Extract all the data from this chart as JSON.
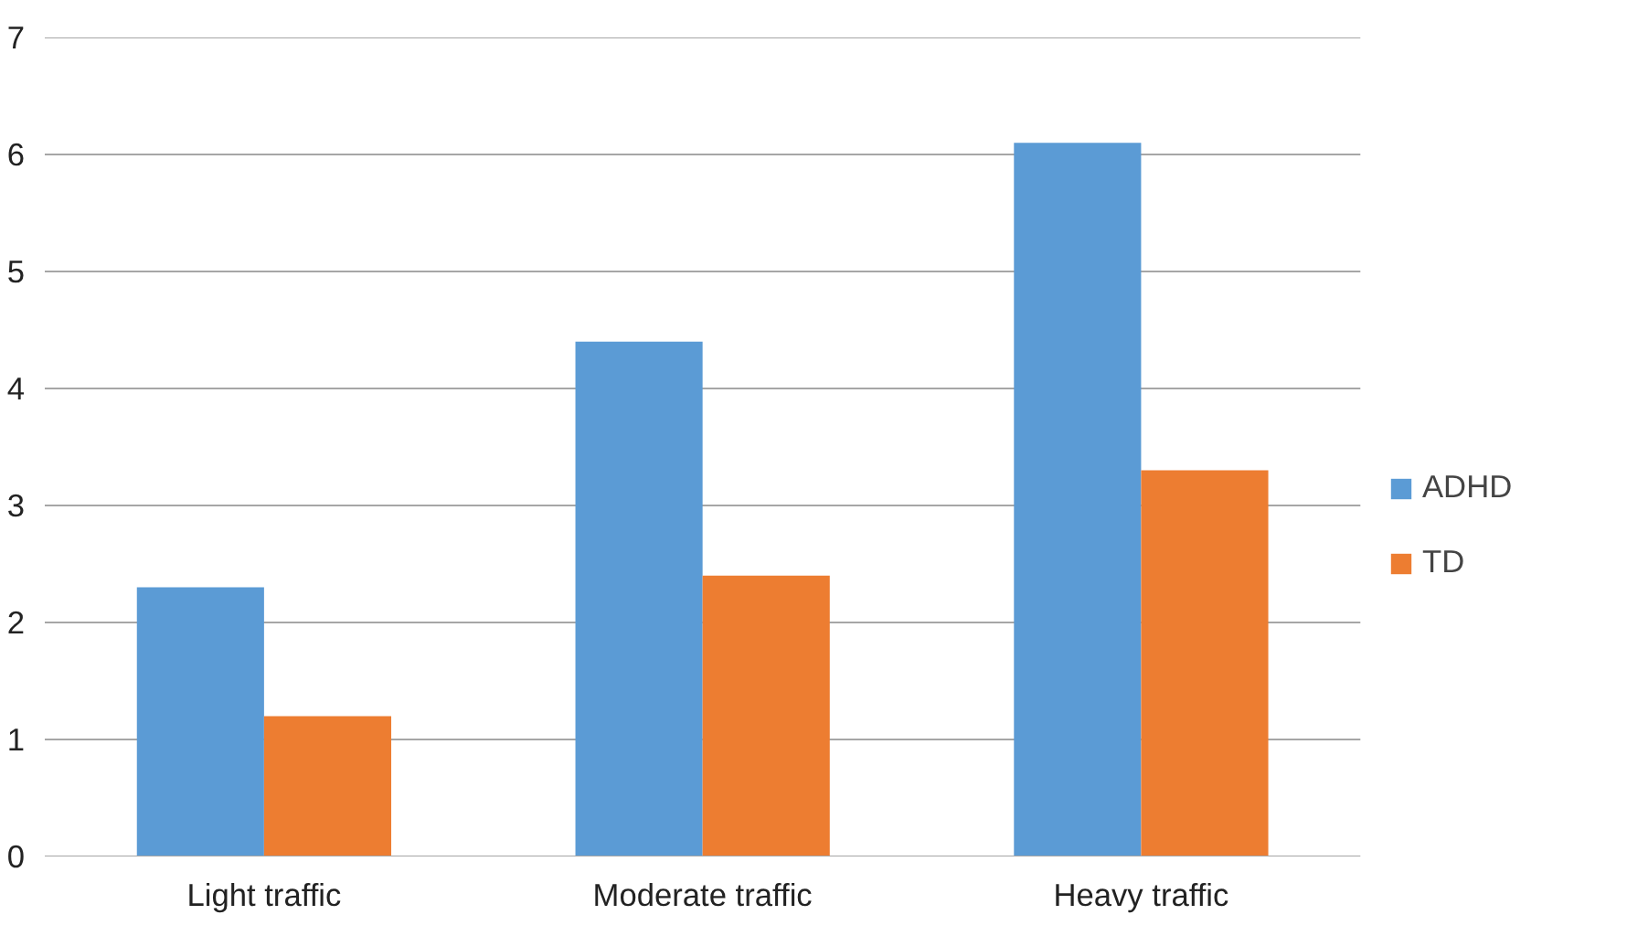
{
  "chart_data": {
    "type": "bar",
    "categories": [
      "Light traffic",
      "Moderate traffic",
      "Heavy traffic"
    ],
    "series": [
      {
        "name": "ADHD",
        "color": "#5b9bd5",
        "values": [
          2.3,
          4.4,
          6.1
        ]
      },
      {
        "name": "TD",
        "color": "#ed7d31",
        "values": [
          1.2,
          2.4,
          3.3
        ]
      }
    ],
    "ylim": [
      0,
      7
    ],
    "yticks": [
      0,
      1,
      2,
      3,
      4,
      5,
      6,
      7
    ],
    "grid": "y",
    "legend": "right"
  }
}
